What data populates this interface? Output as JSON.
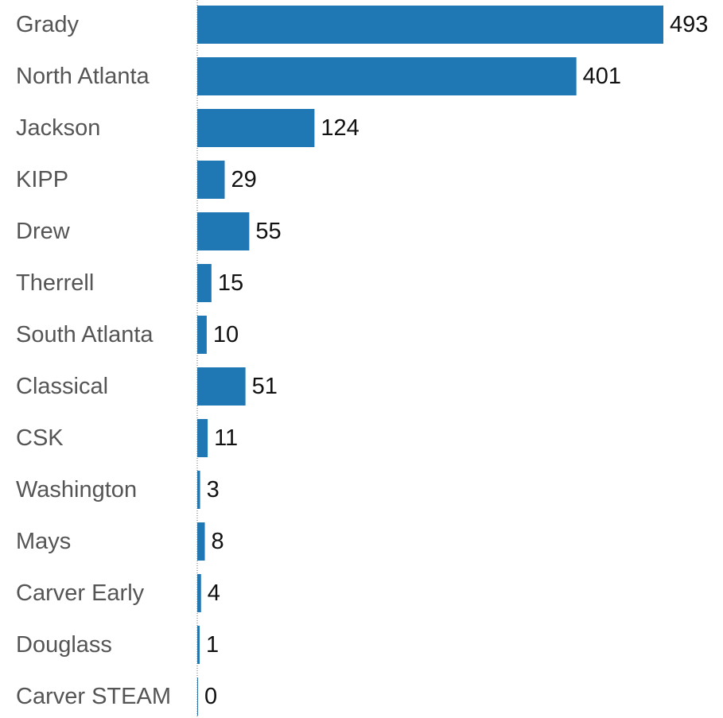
{
  "chart_data": {
    "type": "bar",
    "orientation": "horizontal",
    "title": "",
    "xlabel": "",
    "ylabel": "",
    "categories": [
      "Grady",
      "North Atlanta",
      "Jackson",
      "KIPP",
      "Drew",
      "Therrell",
      "South Atlanta",
      "Classical",
      "CSK",
      "Washington",
      "Mays",
      "Carver Early",
      "Douglass",
      "Carver STEAM"
    ],
    "values": [
      493,
      401,
      124,
      29,
      55,
      15,
      10,
      51,
      11,
      3,
      8,
      4,
      1,
      0
    ],
    "value_labels": [
      "493",
      "401",
      "124",
      "29",
      "55",
      "15",
      "10",
      "51",
      "11",
      "3",
      "8",
      "4",
      "1",
      "0"
    ],
    "xlim": [
      0,
      493
    ],
    "grid": false,
    "legend": "none",
    "colors": {
      "bar": "#1f77b4",
      "category_text": "#555555",
      "value_text": "#111111",
      "baseline": "#666666"
    }
  }
}
